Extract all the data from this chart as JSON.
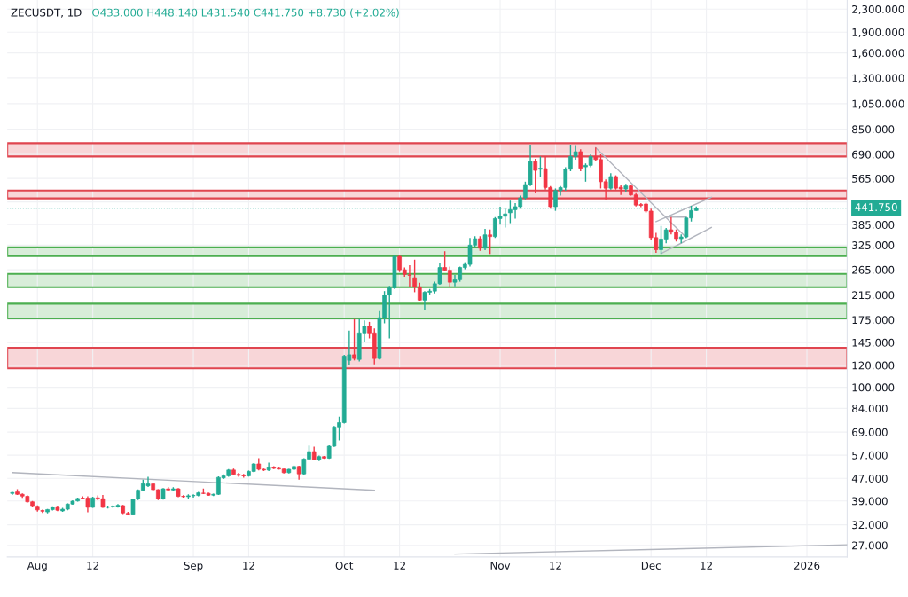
{
  "chart_data": {
    "type": "candlestick",
    "title": "ZECUSDT, 1D",
    "subtitle": "O433.000 H448.140 L431.540 C441.750 +8.730 (+2.02%)",
    "x": [
      "2025-07-27",
      "2025-07-28",
      "2025-07-29",
      "2025-07-30",
      "2025-07-31",
      "2025-08-01",
      "2025-08-02",
      "2025-08-03",
      "2025-08-04",
      "2025-08-05",
      "2025-08-06",
      "2025-08-07",
      "2025-08-08",
      "2025-08-09",
      "2025-08-10",
      "2025-08-11",
      "2025-08-12",
      "2025-08-13",
      "2025-08-14",
      "2025-08-15",
      "2025-08-16",
      "2025-08-17",
      "2025-08-18",
      "2025-08-19",
      "2025-08-20",
      "2025-08-21",
      "2025-08-22",
      "2025-08-23",
      "2025-08-24",
      "2025-08-25",
      "2025-08-26",
      "2025-08-27",
      "2025-08-28",
      "2025-08-29",
      "2025-08-30",
      "2025-08-31",
      "2025-09-01",
      "2025-09-02",
      "2025-09-03",
      "2025-09-04",
      "2025-09-05",
      "2025-09-06",
      "2025-09-07",
      "2025-09-08",
      "2025-09-09",
      "2025-09-10",
      "2025-09-11",
      "2025-09-12",
      "2025-09-13",
      "2025-09-14",
      "2025-09-15",
      "2025-09-16",
      "2025-09-17",
      "2025-09-18",
      "2025-09-19",
      "2025-09-20",
      "2025-09-21",
      "2025-09-22",
      "2025-09-23",
      "2025-09-24",
      "2025-09-25",
      "2025-09-26",
      "2025-09-27",
      "2025-09-28",
      "2025-09-29",
      "2025-09-30",
      "2025-10-01",
      "2025-10-02",
      "2025-10-03",
      "2025-10-04",
      "2025-10-05",
      "2025-10-06",
      "2025-10-07",
      "2025-10-08",
      "2025-10-09",
      "2025-10-10",
      "2025-10-11",
      "2025-10-12",
      "2025-10-13",
      "2025-10-14",
      "2025-10-15",
      "2025-10-16",
      "2025-10-17",
      "2025-10-18",
      "2025-10-19",
      "2025-10-20",
      "2025-10-21",
      "2025-10-22",
      "2025-10-23",
      "2025-10-24",
      "2025-10-25",
      "2025-10-26",
      "2025-10-27",
      "2025-10-28",
      "2025-10-29",
      "2025-10-30",
      "2025-10-31",
      "2025-11-01",
      "2025-11-02",
      "2025-11-03",
      "2025-11-04",
      "2025-11-05",
      "2025-11-06",
      "2025-11-07",
      "2025-11-08",
      "2025-11-09",
      "2025-11-10",
      "2025-11-11",
      "2025-11-12",
      "2025-11-13",
      "2025-11-14",
      "2025-11-15",
      "2025-11-16",
      "2025-11-17",
      "2025-11-18",
      "2025-11-19",
      "2025-11-20",
      "2025-11-21",
      "2025-11-22",
      "2025-11-23",
      "2025-11-24",
      "2025-11-25",
      "2025-11-26",
      "2025-11-27",
      "2025-11-28",
      "2025-11-29",
      "2025-11-30",
      "2025-12-01",
      "2025-12-02",
      "2025-12-03",
      "2025-12-04",
      "2025-12-05",
      "2025-12-06",
      "2025-12-07",
      "2025-12-08",
      "2025-12-09",
      "2025-12-10"
    ],
    "ohlc": [
      [
        41.5,
        42,
        41,
        41.8
      ],
      [
        42,
        43,
        41,
        41.2
      ],
      [
        41.2,
        41.5,
        40,
        40.6
      ],
      [
        40.5,
        40.8,
        38.5,
        38.7
      ],
      [
        38.7,
        39,
        37,
        37.5
      ],
      [
        37.3,
        37.6,
        35.7,
        36.2
      ],
      [
        36,
        36.3,
        35.3,
        35.8
      ],
      [
        35.6,
        36.5,
        35.2,
        36.3
      ],
      [
        36.3,
        37.3,
        36,
        37.1
      ],
      [
        37.2,
        37.5,
        35.8,
        36.1
      ],
      [
        35.9,
        36.8,
        35.6,
        36.4
      ],
      [
        36.4,
        38.2,
        36.1,
        38.0
      ],
      [
        38,
        39.2,
        37.8,
        38.9
      ],
      [
        39,
        40.1,
        38.8,
        39.8
      ],
      [
        39.9,
        40.5,
        39.6,
        39.8
      ],
      [
        39.9,
        40.5,
        35.5,
        37
      ],
      [
        37,
        40.4,
        36.8,
        40
      ],
      [
        40,
        40.8,
        39.2,
        39.6
      ],
      [
        39.7,
        41,
        36.8,
        37
      ],
      [
        37,
        37.5,
        36.6,
        37.1
      ],
      [
        37.2,
        37.6,
        36.8,
        37.3
      ],
      [
        37.2,
        38,
        36.9,
        37.6
      ],
      [
        37.5,
        37.7,
        35,
        35.3
      ],
      [
        35.2,
        35.6,
        34.7,
        34.9
      ],
      [
        34.9,
        39.8,
        34.7,
        39.5
      ],
      [
        39.7,
        42.9,
        39.3,
        42.6
      ],
      [
        42.6,
        46.5,
        42.3,
        45.0
      ],
      [
        44.2,
        47.6,
        43.8,
        44.9
      ],
      [
        44.9,
        45.2,
        42.6,
        42.8
      ],
      [
        42.8,
        43,
        39.3,
        39.7
      ],
      [
        39.7,
        43.4,
        39.4,
        43.1
      ],
      [
        43.1,
        43.8,
        42.5,
        42.7
      ],
      [
        42.7,
        43.7,
        42.3,
        43.1
      ],
      [
        43.1,
        43.4,
        40.2,
        40.5
      ],
      [
        40.5,
        40.9,
        40.1,
        40.4
      ],
      [
        40.4,
        41.2,
        39.5,
        40.7
      ],
      [
        40.7,
        41.2,
        40.1,
        40.8
      ],
      [
        40.8,
        42,
        40.5,
        41.7
      ],
      [
        41.6,
        43.2,
        41.3,
        41.5
      ],
      [
        41.5,
        41.8,
        40.7,
        40.9
      ],
      [
        40.9,
        41.4,
        40.6,
        41.2
      ],
      [
        41.2,
        47.8,
        41,
        47.4
      ],
      [
        47.2,
        48.6,
        46.8,
        48.0
      ],
      [
        48.0,
        50.8,
        47.6,
        50.4
      ],
      [
        50.4,
        51,
        48.2,
        48.6
      ],
      [
        48.6,
        49.2,
        47.6,
        48.2
      ],
      [
        48.2,
        48.8,
        47.3,
        48.0
      ],
      [
        48.0,
        50.2,
        47.7,
        49.8
      ],
      [
        49.8,
        53.4,
        49.5,
        53.0
      ],
      [
        53.0,
        55.6,
        50.2,
        50.7
      ],
      [
        50.7,
        51,
        50,
        50.4
      ],
      [
        50.4,
        53.6,
        50,
        51.4
      ],
      [
        51.4,
        52,
        50.8,
        51.1
      ],
      [
        51.1,
        51.4,
        50.6,
        50.8
      ],
      [
        50.8,
        51,
        49,
        49.3
      ],
      [
        49.3,
        50.9,
        49,
        50.7
      ],
      [
        50.7,
        52.3,
        50.4,
        51.9
      ],
      [
        51.9,
        52.2,
        46.5,
        48.8
      ],
      [
        48.8,
        55.6,
        48.5,
        55.2
      ],
      [
        55.2,
        61.7,
        54.8,
        58.7
      ],
      [
        58.7,
        61.2,
        54.6,
        55.0
      ],
      [
        55.0,
        56.8,
        54.3,
        56.3
      ],
      [
        56.3,
        56.6,
        55.3,
        55.6
      ],
      [
        55.6,
        61.8,
        55.3,
        61.4
      ],
      [
        61.4,
        72.5,
        61,
        72
      ],
      [
        72,
        78.4,
        64.4,
        74.6
      ],
      [
        74.6,
        131,
        74,
        129.6
      ],
      [
        125,
        160,
        120,
        131
      ],
      [
        131,
        176,
        125,
        127
      ],
      [
        126,
        176,
        124,
        157
      ],
      [
        157,
        174,
        145,
        166
      ],
      [
        166,
        172,
        150,
        157
      ],
      [
        157,
        163,
        121,
        127
      ],
      [
        127,
        188,
        126,
        178
      ],
      [
        178,
        222,
        170,
        215
      ],
      [
        215,
        232,
        150,
        228
      ],
      [
        228,
        300,
        226,
        296
      ],
      [
        296,
        300,
        260,
        265
      ],
      [
        265,
        270,
        250,
        255
      ],
      [
        254,
        275,
        230,
        253
      ],
      [
        248,
        288,
        220,
        230
      ],
      [
        230,
        238,
        205,
        206
      ],
      [
        206,
        222,
        190,
        220
      ],
      [
        220,
        226,
        216,
        222
      ],
      [
        222,
        240,
        218,
        236
      ],
      [
        236,
        280,
        234,
        270
      ],
      [
        270,
        309,
        262,
        264
      ],
      [
        264,
        272,
        230,
        239
      ],
      [
        239,
        254,
        231,
        244
      ],
      [
        244,
        272,
        240,
        270
      ],
      [
        270,
        282,
        266,
        277
      ],
      [
        277,
        345,
        272,
        325
      ],
      [
        325,
        350,
        318,
        343
      ],
      [
        343,
        350,
        310,
        317
      ],
      [
        317,
        372,
        312,
        354
      ],
      [
        354,
        370,
        302,
        349
      ],
      [
        349,
        410,
        345,
        405
      ],
      [
        405,
        447,
        385,
        413
      ],
      [
        413,
        440,
        376,
        421
      ],
      [
        425,
        470,
        390,
        436
      ],
      [
        436,
        460,
        405,
        447
      ],
      [
        447,
        490,
        440,
        481
      ],
      [
        481,
        550,
        475,
        537
      ],
      [
        537,
        748,
        530,
        650
      ],
      [
        650,
        665,
        499,
        604
      ],
      [
        610,
        678,
        571,
        615
      ],
      [
        613,
        678,
        515,
        524
      ],
      [
        524,
        530,
        440,
        447
      ],
      [
        447,
        520,
        432,
        511
      ],
      [
        511,
        530,
        490,
        524
      ],
      [
        524,
        620,
        510,
        610
      ],
      [
        610,
        748,
        600,
        678
      ],
      [
        678,
        740,
        660,
        705
      ],
      [
        705,
        720,
        600,
        615
      ],
      [
        622,
        640,
        550,
        630
      ],
      [
        630,
        690,
        620,
        678
      ],
      [
        678,
        730,
        655,
        661
      ],
      [
        661,
        690,
        520,
        550
      ],
      [
        550,
        560,
        475,
        521
      ],
      [
        521,
        590,
        515,
        574
      ],
      [
        574,
        580,
        515,
        521
      ],
      [
        525,
        535,
        493,
        518
      ],
      [
        518,
        540,
        505,
        531
      ],
      [
        531,
        535,
        490,
        493
      ],
      [
        493,
        500,
        448,
        453
      ],
      [
        455,
        460,
        445,
        452
      ],
      [
        457,
        462,
        425,
        431
      ],
      [
        431,
        440,
        340,
        346
      ],
      [
        346,
        360,
        305,
        313
      ],
      [
        313,
        381,
        302,
        342
      ],
      [
        342,
        375,
        330,
        369
      ],
      [
        369,
        410,
        355,
        362
      ],
      [
        362,
        370,
        335,
        343
      ],
      [
        343,
        355,
        330,
        348
      ],
      [
        348,
        410,
        345,
        407
      ],
      [
        407,
        450,
        395,
        433
      ],
      [
        433,
        448.14,
        431.54,
        441.75
      ]
    ],
    "series": [
      {
        "type": "line",
        "color": "#b2b5be",
        "x": [
          "2025-07-27",
          "2025-10-07"
        ],
        "values": [
          49.3,
          42.6
        ]
      },
      {
        "type": "line",
        "color": "#b2b5be",
        "x": [
          "2025-10-23",
          "2026-01-09"
        ],
        "values": [
          25.1,
          27.1
        ]
      },
      {
        "type": "line",
        "color": "#b2b5be",
        "x": [
          "2025-11-20",
          "2025-12-08"
        ],
        "values": [
          729,
          346
        ]
      },
      {
        "type": "line",
        "color": "#b2b5be",
        "x": [
          "2025-12-02",
          "2025-12-13"
        ],
        "values": [
          395,
          483
        ]
      },
      {
        "type": "line",
        "color": "#b2b5be",
        "x": [
          "2025-12-03",
          "2025-12-13"
        ],
        "values": [
          303,
          376
        ]
      },
      {
        "type": "line",
        "color": "#b2b5be",
        "x": [
          "2025-12-04",
          "2025-12-08"
        ],
        "values": [
          410,
          410
        ]
      }
    ],
    "bands": [
      {
        "axis": "y",
        "from": 678,
        "to": 757,
        "color": "#e0454f"
      },
      {
        "axis": "y",
        "from": 479,
        "to": 511,
        "color": "#e0454f"
      },
      {
        "axis": "y",
        "from": 297,
        "to": 319,
        "color": "#4caf50"
      },
      {
        "axis": "y",
        "from": 229.5,
        "to": 256,
        "color": "#4caf50"
      },
      {
        "axis": "y",
        "from": 177,
        "to": 200,
        "color": "#4caf50"
      },
      {
        "axis": "y",
        "from": 117,
        "to": 138.8,
        "color": "#e0454f"
      }
    ],
    "ref_lines": [
      {
        "axis": "y",
        "value": 441.75,
        "label": "441.750",
        "color": "#22ab94",
        "line_style": "dotted"
      }
    ],
    "log": "y",
    "ylim": [
      24.5,
      2480
    ],
    "yticks": [
      {
        "value": 27,
        "label": "27.000"
      },
      {
        "value": 32,
        "label": "32.000"
      },
      {
        "value": 39,
        "label": "39.000"
      },
      {
        "value": 47,
        "label": "47.000"
      },
      {
        "value": 57,
        "label": "57.000"
      },
      {
        "value": 69,
        "label": "69.000"
      },
      {
        "value": 84,
        "label": "84.000"
      },
      {
        "value": 100,
        "label": "100.000"
      },
      {
        "value": 120,
        "label": "120.000"
      },
      {
        "value": 145,
        "label": "145.000"
      },
      {
        "value": 175,
        "label": "175.000"
      },
      {
        "value": 215,
        "label": "215.000"
      },
      {
        "value": 265,
        "label": "265.000"
      },
      {
        "value": 325,
        "label": "325.000"
      },
      {
        "value": 385,
        "label": "385.000"
      },
      {
        "value": 465,
        "label": null
      },
      {
        "value": 565,
        "label": "565.000"
      },
      {
        "value": 690,
        "label": "690.000"
      },
      {
        "value": 850,
        "label": "850.000"
      },
      {
        "value": 1050,
        "label": "1,050.000"
      },
      {
        "value": 1300,
        "label": "1,300.000"
      },
      {
        "value": 1600,
        "label": "1,600.000"
      },
      {
        "value": 1900,
        "label": "1,900.000"
      },
      {
        "value": 2300,
        "label": "2,300.000"
      }
    ],
    "xlim": [
      "2025-07-26",
      "2026-01-09"
    ],
    "xticks": [
      {
        "value": "2025-08-01",
        "label": "Aug"
      },
      {
        "value": "2025-08-12",
        "label": "12"
      },
      {
        "value": "2025-09-01",
        "label": "Sep"
      },
      {
        "value": "2025-09-12",
        "label": "12"
      },
      {
        "value": "2025-10-01",
        "label": "Oct"
      },
      {
        "value": "2025-10-12",
        "label": "12"
      },
      {
        "value": "2025-11-01",
        "label": "Nov"
      },
      {
        "value": "2025-11-12",
        "label": "12"
      },
      {
        "value": "2025-12-01",
        "label": "Dec"
      },
      {
        "value": "2025-12-12",
        "label": "12"
      },
      {
        "value": "2026-01-01",
        "label": "2026"
      }
    ],
    "grid": true,
    "legend": false
  }
}
